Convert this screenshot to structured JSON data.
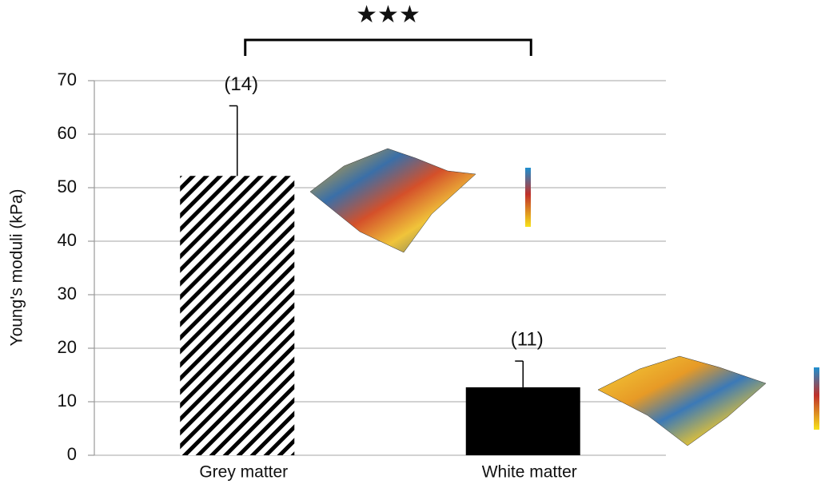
{
  "chart_data": {
    "type": "bar",
    "y_label": "Young's moduli (kPa)",
    "categories": [
      "Grey matter",
      "White matter"
    ],
    "values": [
      52.2,
      12.7
    ],
    "errors": [
      13.1,
      4.9
    ],
    "annotations": [
      "(14)",
      "(11)"
    ],
    "patterns": [
      "diagonal-hatch",
      "solid"
    ],
    "color": "#000000",
    "significance": "★★★",
    "ylim": [
      0,
      70
    ],
    "yticks": [
      0,
      10,
      20,
      30,
      40,
      50,
      60,
      70
    ],
    "grid": true
  }
}
